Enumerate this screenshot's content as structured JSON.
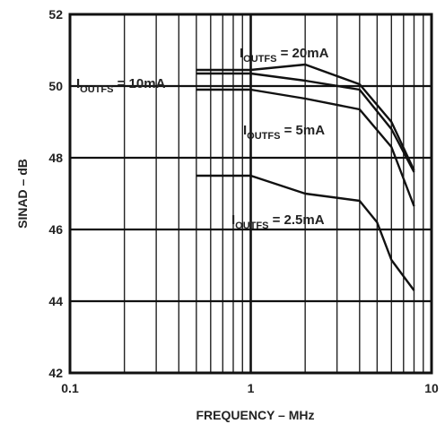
{
  "chart_data": {
    "type": "line",
    "xlabel": "FREQUENCY – MHz",
    "ylabel": "SINAD – dB",
    "xscale": "log",
    "xlim": [
      0.1,
      10
    ],
    "ylim": [
      42,
      52
    ],
    "x_ticks": [
      "0.1",
      "1",
      "10"
    ],
    "y_ticks": [
      "42",
      "44",
      "46",
      "48",
      "50",
      "52"
    ],
    "grid": true,
    "series": [
      {
        "name": "IOUTFS = 20mA",
        "x": [
          0.5,
          1,
          2,
          4,
          6,
          8
        ],
        "y": [
          50.45,
          50.45,
          50.6,
          50.05,
          49.0,
          47.65
        ]
      },
      {
        "name": "IOUTFS = 10mA",
        "x": [
          0.5,
          1,
          2,
          4,
          6,
          8
        ],
        "y": [
          50.35,
          50.35,
          50.15,
          49.9,
          48.8,
          47.6
        ]
      },
      {
        "name": "IOUTFS = 5mA",
        "x": [
          0.5,
          1,
          2,
          4,
          6,
          8
        ],
        "y": [
          49.9,
          49.9,
          49.65,
          49.35,
          48.3,
          46.65
        ]
      },
      {
        "name": "IOUTFS = 2.5mA",
        "x": [
          0.5,
          1,
          2,
          4,
          5,
          6,
          8
        ],
        "y": [
          47.5,
          47.5,
          47.0,
          46.8,
          46.2,
          45.15,
          44.3
        ]
      }
    ],
    "annotations": [
      {
        "main": "I",
        "sub": "OUTFS",
        "rest": " = 20mA"
      },
      {
        "main": "I",
        "sub": "OUTFS",
        "rest": " = 10mA"
      },
      {
        "main": "I",
        "sub": "OUTFS",
        "rest": " = 5mA"
      },
      {
        "main": "I",
        "sub": "OUTFS",
        "rest": " = 2.5mA"
      }
    ]
  }
}
